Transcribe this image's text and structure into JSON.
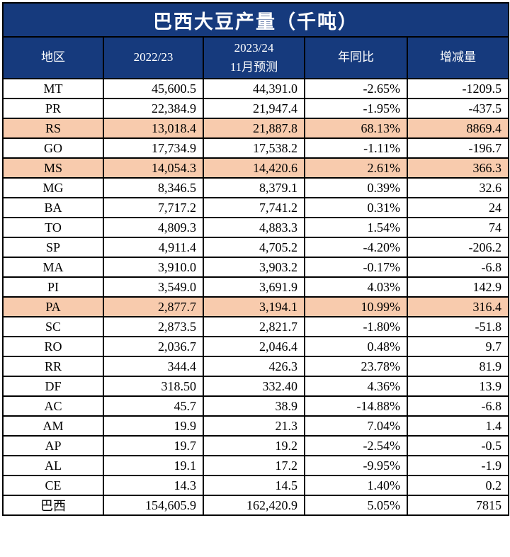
{
  "title": "巴西大豆产量（千吨）",
  "colors": {
    "header_bg": "#163A7D",
    "header_text": "#FFFFFF",
    "highlight_bg": "#F8CBAD",
    "border": "#000000"
  },
  "columns": [
    {
      "label": "地区"
    },
    {
      "label": "2022/23"
    },
    {
      "label": "2023/24",
      "label2": "11月预测"
    },
    {
      "label": "年同比"
    },
    {
      "label": "增减量"
    }
  ],
  "rows": [
    {
      "region": "MT",
      "y2223": "45,600.5",
      "forecast": "44,391.0",
      "yoy": "-2.65%",
      "change": "-1209.5",
      "highlight": false
    },
    {
      "region": "PR",
      "y2223": "22,384.9",
      "forecast": "21,947.4",
      "yoy": "-1.95%",
      "change": "-437.5",
      "highlight": false
    },
    {
      "region": "RS",
      "y2223": "13,018.4",
      "forecast": "21,887.8",
      "yoy": "68.13%",
      "change": "8869.4",
      "highlight": true
    },
    {
      "region": "GO",
      "y2223": "17,734.9",
      "forecast": "17,538.2",
      "yoy": "-1.11%",
      "change": "-196.7",
      "highlight": false
    },
    {
      "region": "MS",
      "y2223": "14,054.3",
      "forecast": "14,420.6",
      "yoy": "2.61%",
      "change": "366.3",
      "highlight": true
    },
    {
      "region": "MG",
      "y2223": "8,346.5",
      "forecast": "8,379.1",
      "yoy": "0.39%",
      "change": "32.6",
      "highlight": false
    },
    {
      "region": "BA",
      "y2223": "7,717.2",
      "forecast": "7,741.2",
      "yoy": "0.31%",
      "change": "24",
      "highlight": false
    },
    {
      "region": "TO",
      "y2223": "4,809.3",
      "forecast": "4,883.3",
      "yoy": "1.54%",
      "change": "74",
      "highlight": false
    },
    {
      "region": "SP",
      "y2223": "4,911.4",
      "forecast": "4,705.2",
      "yoy": "-4.20%",
      "change": "-206.2",
      "highlight": false
    },
    {
      "region": "MA",
      "y2223": "3,910.0",
      "forecast": "3,903.2",
      "yoy": "-0.17%",
      "change": "-6.8",
      "highlight": false
    },
    {
      "region": "PI",
      "y2223": "3,549.0",
      "forecast": "3,691.9",
      "yoy": "4.03%",
      "change": "142.9",
      "highlight": false
    },
    {
      "region": "PA",
      "y2223": "2,877.7",
      "forecast": "3,194.1",
      "yoy": "10.99%",
      "change": "316.4",
      "highlight": true
    },
    {
      "region": "SC",
      "y2223": "2,873.5",
      "forecast": "2,821.7",
      "yoy": "-1.80%",
      "change": "-51.8",
      "highlight": false
    },
    {
      "region": "RO",
      "y2223": "2,036.7",
      "forecast": "2,046.4",
      "yoy": "0.48%",
      "change": "9.7",
      "highlight": false
    },
    {
      "region": "RR",
      "y2223": "344.4",
      "forecast": "426.3",
      "yoy": "23.78%",
      "change": "81.9",
      "highlight": false
    },
    {
      "region": "DF",
      "y2223": "318.50",
      "forecast": "332.40",
      "yoy": "4.36%",
      "change": "13.9",
      "highlight": false
    },
    {
      "region": "AC",
      "y2223": "45.7",
      "forecast": "38.9",
      "yoy": "-14.88%",
      "change": "-6.8",
      "highlight": false
    },
    {
      "region": "AM",
      "y2223": "19.9",
      "forecast": "21.3",
      "yoy": "7.04%",
      "change": "1.4",
      "highlight": false
    },
    {
      "region": "AP",
      "y2223": "19.7",
      "forecast": "19.2",
      "yoy": "-2.54%",
      "change": "-0.5",
      "highlight": false
    },
    {
      "region": "AL",
      "y2223": "19.1",
      "forecast": "17.2",
      "yoy": "-9.95%",
      "change": "-1.9",
      "highlight": false
    },
    {
      "region": "CE",
      "y2223": "14.3",
      "forecast": "14.5",
      "yoy": "1.40%",
      "change": "0.2",
      "highlight": false
    },
    {
      "region": "巴西",
      "y2223": "154,605.9",
      "forecast": "162,420.9",
      "yoy": "5.05%",
      "change": "7815",
      "highlight": false
    }
  ]
}
